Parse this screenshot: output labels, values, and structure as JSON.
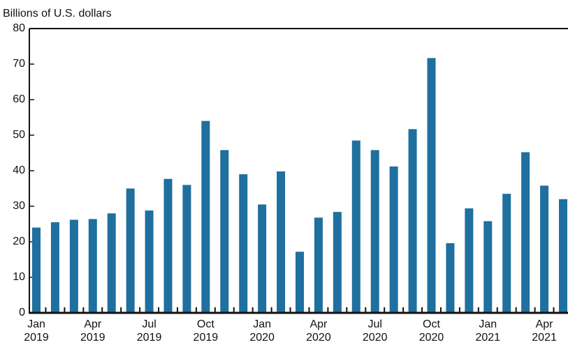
{
  "chart_data": {
    "type": "bar",
    "title": "Billions of U.S. dollars",
    "categories": [
      "Jan\n2019",
      null,
      null,
      "Apr\n2019",
      null,
      null,
      "Jul\n2019",
      null,
      null,
      "Oct\n2019",
      null,
      null,
      "Jan\n2020",
      null,
      null,
      "Apr\n2020",
      null,
      null,
      "Jul\n2020",
      null,
      null,
      "Oct\n2020",
      null,
      null,
      "Jan\n2021",
      null,
      null,
      "Apr\n2021",
      null
    ],
    "values": [
      24,
      25.5,
      26.2,
      26.4,
      28,
      35,
      28.8,
      37.7,
      36,
      54,
      45.8,
      39,
      30.5,
      39.8,
      17.2,
      26.8,
      28.4,
      48.5,
      45.8,
      41.2,
      51.7,
      71.7,
      19.6,
      29.4,
      25.8,
      33.5,
      45.2,
      35.8,
      32
    ],
    "color": "#1f6f9f",
    "ylim": [
      0,
      80
    ],
    "yticks": [
      0,
      10,
      20,
      30,
      40,
      50,
      60,
      70,
      80
    ]
  }
}
